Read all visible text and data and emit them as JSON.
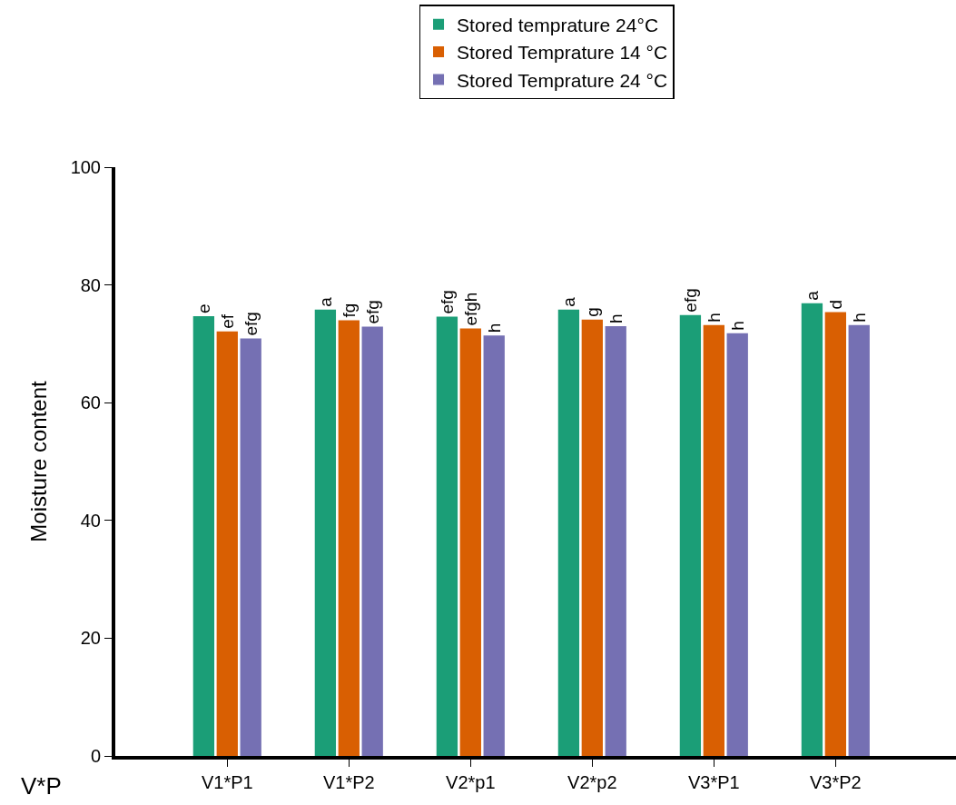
{
  "chart_data": {
    "type": "bar",
    "xlabel": "V*P",
    "ylabel": "Moisture content",
    "categories": [
      "V1*P1",
      "V1*P2",
      "V2*p1",
      "V2*p2",
      "V3*P1",
      "V3*P2"
    ],
    "series": [
      {
        "name": "Stored temprature 24°C",
        "color": "#1b9e77",
        "values": [
          74.7,
          75.8,
          74.6,
          75.8,
          74.9,
          76.9
        ],
        "value_labels": [
          "e",
          "a",
          "efg",
          "a",
          "efg",
          "a"
        ]
      },
      {
        "name": "Stored Temprature 14 °C",
        "color": "#d95f02",
        "values": [
          72.1,
          74.0,
          72.6,
          74.1,
          73.2,
          75.4
        ],
        "value_labels": [
          "ef",
          "fg",
          "efgh",
          "g",
          "h",
          "d"
        ]
      },
      {
        "name": "Stored Temprature 24 °C",
        "color": "#7570b3",
        "values": [
          70.9,
          72.9,
          71.4,
          73.0,
          71.8,
          73.2
        ],
        "value_labels": [
          "efg",
          "efg",
          "h",
          "h",
          "h",
          "h"
        ]
      }
    ],
    "ylim": [
      0,
      100
    ],
    "yticks": [
      0,
      20,
      40,
      60,
      80,
      100
    ],
    "legend": "top"
  }
}
